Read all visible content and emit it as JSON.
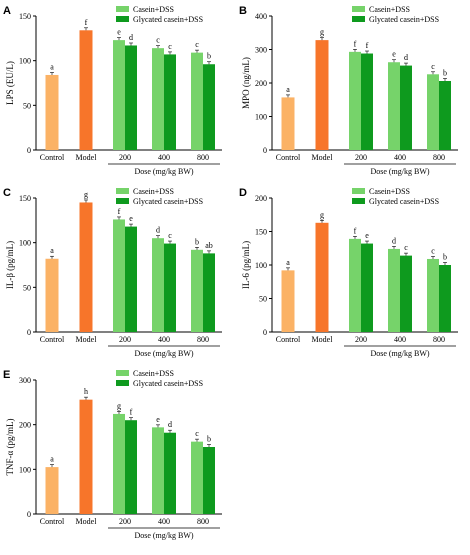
{
  "colors": {
    "control": "#FBB265",
    "model": "#F7752A",
    "casein_dss": "#76D36A",
    "glycated_casein_dss": "#0E9A1E",
    "axis": "#000000"
  },
  "chart_data": [
    {
      "panel": "A",
      "type": "bar",
      "ylabel": "LPS (EU/L)",
      "xlabel": "Dose (mg/kg  BW)",
      "ylim": [
        0,
        150
      ],
      "yticks": [
        0,
        50,
        100,
        150
      ],
      "controls": [
        {
          "label": "Control",
          "value": 84,
          "sig": "a"
        },
        {
          "label": "Model",
          "value": 134,
          "sig": "f"
        }
      ],
      "dose_categories": [
        "200",
        "400",
        "800"
      ],
      "series": [
        {
          "name": "Casein+DSS",
          "values": [
            123,
            114,
            109
          ],
          "sig": [
            "e",
            "c",
            "c"
          ]
        },
        {
          "name": "Glycated casein+DSS",
          "values": [
            117,
            107,
            96
          ],
          "sig": [
            "d",
            "c",
            "b"
          ]
        }
      ]
    },
    {
      "panel": "B",
      "type": "bar",
      "ylabel": "MPO (ng/mL)",
      "xlabel": "Dose (mg/kg  BW)",
      "ylim": [
        0,
        400
      ],
      "yticks": [
        0,
        100,
        200,
        300,
        400
      ],
      "controls": [
        {
          "label": "Control",
          "value": 157,
          "sig": "a"
        },
        {
          "label": "Model",
          "value": 328,
          "sig": "g"
        }
      ],
      "dose_categories": [
        "200",
        "400",
        "800"
      ],
      "series": [
        {
          "name": "Casein+DSS",
          "values": [
            293,
            262,
            226
          ],
          "sig": [
            "f",
            "e",
            "c"
          ]
        },
        {
          "name": "Glycated casein+DSS",
          "values": [
            288,
            252,
            206
          ],
          "sig": [
            "f",
            "d",
            "b"
          ]
        }
      ]
    },
    {
      "panel": "C",
      "type": "bar",
      "ylabel": "IL-β (pg/mL)",
      "xlabel": "Dose (mg/kg  BW)",
      "ylim": [
        0,
        150
      ],
      "yticks": [
        0,
        50,
        100,
        150
      ],
      "controls": [
        {
          "label": "Control",
          "value": 82,
          "sig": "a"
        },
        {
          "label": "Model",
          "value": 145,
          "sig": "g"
        }
      ],
      "dose_categories": [
        "200",
        "400",
        "800"
      ],
      "series": [
        {
          "name": "Casein+DSS",
          "values": [
            126,
            105,
            92
          ],
          "sig": [
            "f",
            "d",
            "b"
          ]
        },
        {
          "name": "Glycated casein+DSS",
          "values": [
            118,
            99,
            88
          ],
          "sig": [
            "e",
            "c",
            "ab"
          ]
        }
      ]
    },
    {
      "panel": "D",
      "type": "bar",
      "ylabel": "IL-6 (pg/mL)",
      "xlabel": "Dose (mg/kg  BW)",
      "ylim": [
        0,
        200
      ],
      "yticks": [
        0,
        50,
        100,
        150,
        200
      ],
      "controls": [
        {
          "label": "Control",
          "value": 92,
          "sig": "a"
        },
        {
          "label": "Model",
          "value": 163,
          "sig": "g"
        }
      ],
      "dose_categories": [
        "200",
        "400",
        "800"
      ],
      "series": [
        {
          "name": "Casein+DSS",
          "values": [
            139,
            124,
            109
          ],
          "sig": [
            "f",
            "d",
            "c"
          ]
        },
        {
          "name": "Glycated casein+DSS",
          "values": [
            132,
            114,
            100
          ],
          "sig": [
            "e",
            "c",
            "b"
          ]
        }
      ]
    },
    {
      "panel": "E",
      "type": "bar",
      "ylabel": "TNF-α (pg/mL)",
      "xlabel": "Dose (mg/kg  BW)",
      "ylim": [
        0,
        300
      ],
      "yticks": [
        0,
        100,
        200,
        300
      ],
      "controls": [
        {
          "label": "Control",
          "value": 105,
          "sig": "a"
        },
        {
          "label": "Model",
          "value": 256,
          "sig": "h"
        }
      ],
      "dose_categories": [
        "200",
        "400",
        "800"
      ],
      "series": [
        {
          "name": "Casein+DSS",
          "values": [
            224,
            194,
            162
          ],
          "sig": [
            "g",
            "e",
            "c"
          ]
        },
        {
          "name": "Glycated casein+DSS",
          "values": [
            210,
            182,
            150
          ],
          "sig": [
            "f",
            "d",
            "b"
          ]
        }
      ]
    }
  ]
}
